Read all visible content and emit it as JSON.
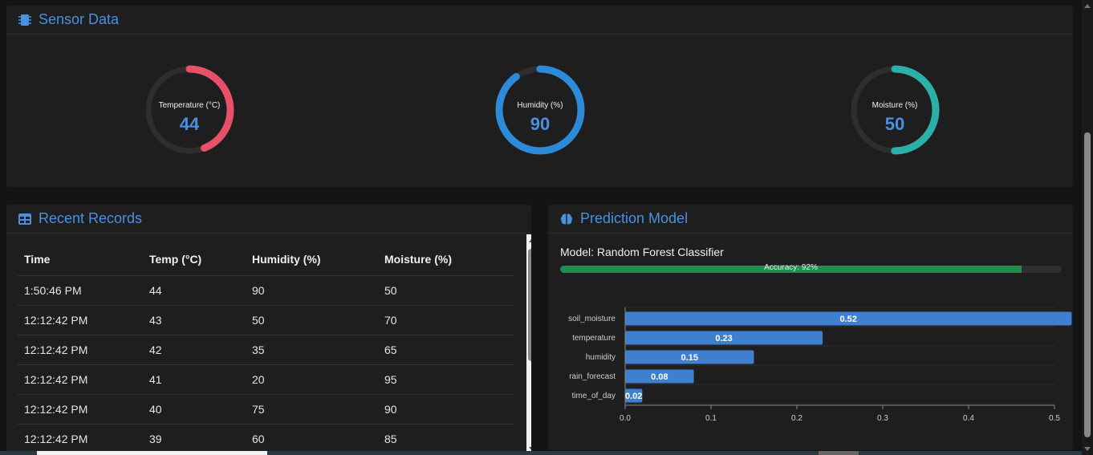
{
  "sensor": {
    "title": "Sensor Data",
    "icon": "chip-icon",
    "gauges": [
      {
        "label": "Temperature (°C)",
        "value": "44",
        "fraction": 0.44,
        "color_start": "#e8506a",
        "color_end": "#f06b80"
      },
      {
        "label": "Humidity (%)",
        "value": "90",
        "fraction": 0.9,
        "color_start": "#2c8ad8",
        "color_end": "#3a9be0"
      },
      {
        "label": "Moisture (%)",
        "value": "50",
        "fraction": 0.5,
        "color_start": "#2bb0a8",
        "color_end": "#48c8bf"
      }
    ]
  },
  "records": {
    "title": "Recent Records",
    "icon": "table-icon",
    "columns": [
      "Time",
      "Temp (°C)",
      "Humidity (%)",
      "Moisture (%)"
    ],
    "rows": [
      [
        "1:50:46 PM",
        "44",
        "90",
        "50"
      ],
      [
        "12:12:42 PM",
        "43",
        "50",
        "70"
      ],
      [
        "12:12:42 PM",
        "42",
        "35",
        "65"
      ],
      [
        "12:12:42 PM",
        "41",
        "20",
        "95"
      ],
      [
        "12:12:42 PM",
        "40",
        "75",
        "90"
      ],
      [
        "12:12:42 PM",
        "39",
        "60",
        "85"
      ]
    ]
  },
  "prediction": {
    "title": "Prediction Model",
    "icon": "brain-icon",
    "model_label": "Model: Random Forest Classifier",
    "accuracy_text": "Accuracy: 92%",
    "accuracy_fraction": 0.92,
    "accuracy_color": "#1e8e4e"
  },
  "chart_data": {
    "type": "bar",
    "orientation": "horizontal",
    "categories": [
      "soil_moisture",
      "temperature",
      "humidity",
      "rain_forecast",
      "time_of_day"
    ],
    "values": [
      0.52,
      0.23,
      0.15,
      0.08,
      0.02
    ],
    "value_labels": [
      "0.52",
      "0.23",
      "0.15",
      "0.08",
      "0.02"
    ],
    "xticks": [
      "0.0",
      "0.1",
      "0.2",
      "0.3",
      "0.4",
      "0.5"
    ],
    "xlim": [
      0,
      0.5
    ],
    "bar_color": "#3f7fd0",
    "grid": true
  }
}
